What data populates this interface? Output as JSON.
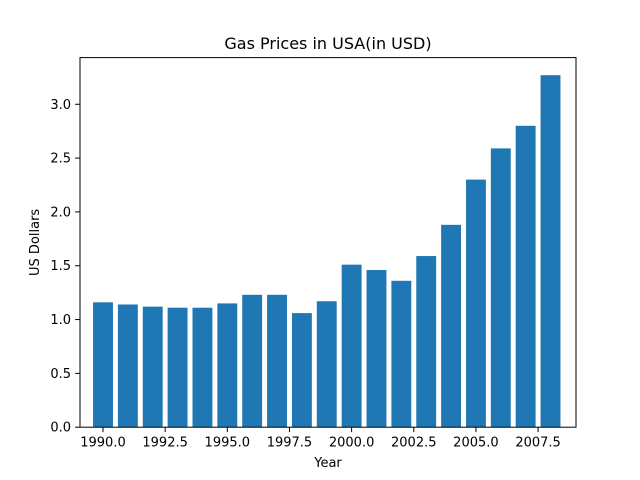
{
  "chart_data": {
    "type": "bar",
    "title": "Gas Prices in USA(in USD)",
    "xlabel": "Year",
    "ylabel": "US Dollars",
    "x": [
      1990,
      1991,
      1992,
      1993,
      1994,
      1995,
      1996,
      1997,
      1998,
      1999,
      2000,
      2001,
      2002,
      2003,
      2004,
      2005,
      2006,
      2007,
      2008
    ],
    "values": [
      1.16,
      1.14,
      1.12,
      1.11,
      1.11,
      1.15,
      1.23,
      1.23,
      1.06,
      1.17,
      1.51,
      1.46,
      1.36,
      1.59,
      1.88,
      2.3,
      2.59,
      2.8,
      3.27
    ],
    "xlim": [
      1989.075,
      2009.025
    ],
    "ylim": [
      0,
      3.4335
    ],
    "xticks": [
      1990.0,
      1992.5,
      1995.0,
      1997.5,
      2000.0,
      2002.5,
      2005.0,
      2007.5
    ],
    "xtick_labels": [
      "1990.0",
      "1992.5",
      "1995.0",
      "1997.5",
      "2000.0",
      "2002.5",
      "2005.0",
      "2007.5"
    ],
    "yticks": [
      0.0,
      0.5,
      1.0,
      1.5,
      2.0,
      2.5,
      3.0
    ],
    "ytick_labels": [
      "0.0",
      "0.5",
      "1.0",
      "1.5",
      "2.0",
      "2.5",
      "3.0"
    ],
    "bar_width": 0.8,
    "bar_color": "#1f77b4",
    "grid": false,
    "legend": "none"
  }
}
